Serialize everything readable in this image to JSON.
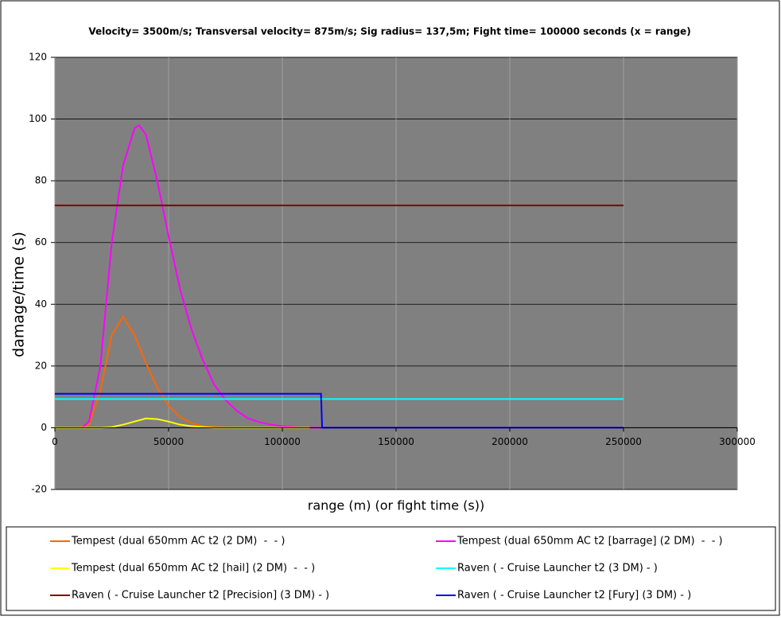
{
  "chart_data": {
    "type": "line",
    "title": "Velocity= 3500m/s; Transversal velocity= 875m/s; Sig radius= 137,5m; Fight time= 100000 seconds (x = range)",
    "x_label": "range (m) (or fight time (s))",
    "y_label": "damage/time (s)",
    "xlim": [
      0,
      300000
    ],
    "xticks": [
      0,
      50000,
      100000,
      150000,
      200000,
      250000,
      300000
    ],
    "ylim": [
      -20,
      120
    ],
    "yticks": [
      -20,
      0,
      20,
      40,
      60,
      80,
      100,
      120
    ],
    "grid": true,
    "series": [
      {
        "name": "Tempest (dual 650mm AC t2 (2 DM)  -  - )",
        "color": "#ff6600",
        "x": [
          0,
          10000,
          15000,
          20000,
          25000,
          30000,
          35000,
          40000,
          45000,
          50000,
          55000,
          60000,
          65000,
          70000,
          75000,
          78000
        ],
        "values": [
          0,
          0,
          1,
          12,
          30,
          36,
          30,
          21,
          13,
          7,
          3.5,
          1.5,
          0.5,
          0.2,
          0,
          0
        ]
      },
      {
        "name": "Tempest (dual 650mm AC t2 [barrage] (2 DM)  -  - )",
        "color": "#ff00ff",
        "x": [
          12000,
          15000,
          20000,
          25000,
          30000,
          35000,
          37000,
          40000,
          45000,
          50000,
          55000,
          60000,
          65000,
          70000,
          75000,
          80000,
          85000,
          90000,
          95000,
          100000,
          105000,
          110000,
          117000
        ],
        "values": [
          0,
          2,
          20,
          60,
          85,
          97,
          98,
          95,
          80,
          62,
          45,
          32,
          22,
          14,
          9,
          5.5,
          3,
          1.8,
          1,
          0.5,
          0.2,
          0,
          0
        ]
      },
      {
        "name": "Tempest (dual 650mm AC t2 [hail] (2 DM)  -  - )",
        "color": "#ffff00",
        "x": [
          0,
          20000,
          25000,
          30000,
          35000,
          40000,
          45000,
          50000,
          55000,
          60000,
          70000,
          112000
        ],
        "values": [
          0,
          0,
          0.2,
          1,
          2,
          3,
          2.8,
          2,
          1,
          0.5,
          0,
          0
        ]
      },
      {
        "name": "Raven ( - Cruise Launcher t2 (3 DM) - )",
        "color": "#00ffff",
        "x": [
          0,
          250000
        ],
        "values": [
          9.3,
          9.3
        ]
      },
      {
        "name": "Raven ( - Cruise Launcher t2 [Precision] (3 DM) - )",
        "color": "#800000",
        "x": [
          0,
          250000
        ],
        "values": [
          72,
          72
        ]
      },
      {
        "name": "Raven ( - Cruise Launcher t2 [Fury] (3 DM) - )",
        "color": "#0000ff",
        "x": [
          0,
          117000,
          117500,
          250000
        ],
        "values": [
          11,
          11,
          0,
          0
        ]
      }
    ]
  }
}
